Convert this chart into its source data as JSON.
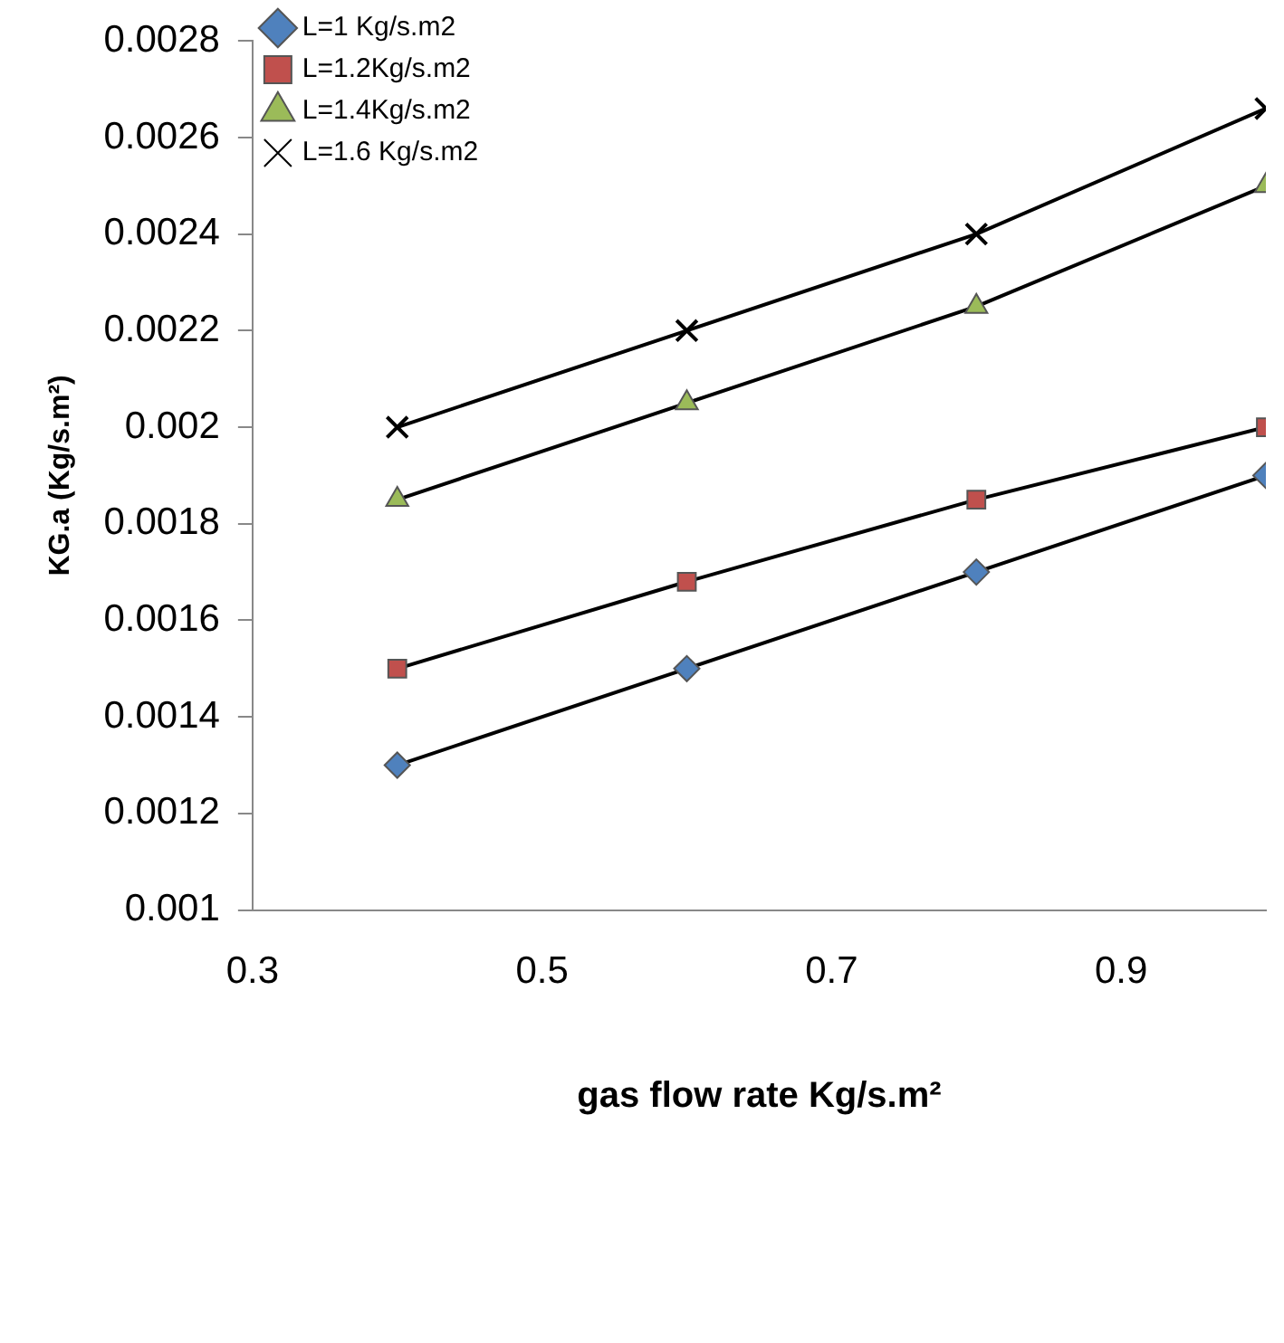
{
  "chart_data": {
    "type": "line",
    "xlabel": "gas flow rate Kg/s.m²",
    "ylabel": "KG.a (Kg/s.m²)",
    "x": [
      0.4,
      0.6,
      0.8,
      1.0
    ],
    "series": [
      {
        "name": "L=1 Kg/s.m2",
        "color": "#4f81bd",
        "marker": "diamond",
        "values": [
          0.0013,
          0.0015,
          0.0017,
          0.0019
        ]
      },
      {
        "name": "L=1.2Kg/s.m2",
        "color": "#c0504d",
        "marker": "square",
        "values": [
          0.0015,
          0.00168,
          0.00185,
          0.002
        ]
      },
      {
        "name": "L=1.4Kg/s.m2",
        "color": "#9bbb59",
        "marker": "triangle",
        "values": [
          0.00185,
          0.00205,
          0.00225,
          0.0025
        ]
      },
      {
        "name": "L=1.6 Kg/s.m2",
        "color": "#000000",
        "marker": "cross",
        "values": [
          0.002,
          0.0022,
          0.0024,
          0.00266
        ]
      }
    ],
    "xlim": [
      0.3,
      1.0
    ],
    "xticks": [
      0.3,
      0.5,
      0.7,
      0.9
    ],
    "ylim": [
      0.001,
      0.0028
    ],
    "yticks": [
      0.001,
      0.0012,
      0.0014,
      0.0016,
      0.0018,
      0.002,
      0.0022,
      0.0024,
      0.0026,
      0.0028
    ],
    "grid": false,
    "legend": "top left"
  }
}
